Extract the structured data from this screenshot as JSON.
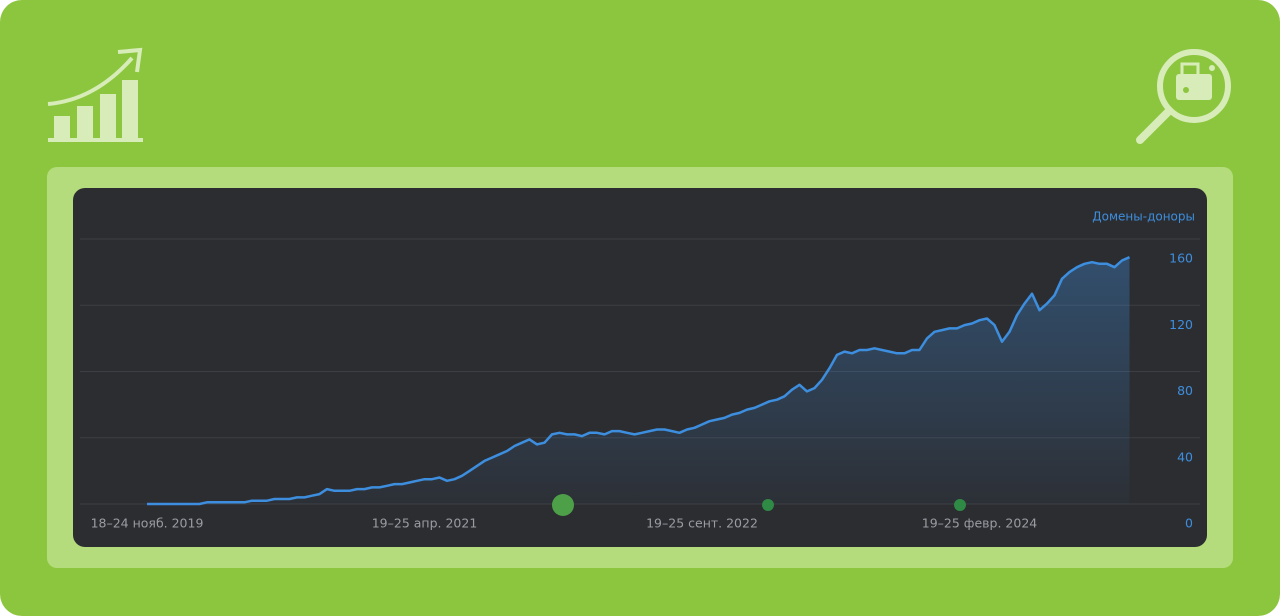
{
  "chart_data": {
    "type": "area",
    "y_axis_label": "Домены-доноры",
    "categories": [
      "18–24 нояб. 2019",
      null,
      null,
      null,
      null,
      null,
      null,
      null,
      null,
      null,
      null,
      null,
      null,
      null,
      null,
      null,
      null,
      null,
      null,
      null,
      null,
      null,
      null,
      null,
      null,
      null,
      null,
      null,
      null,
      null,
      null,
      null,
      null,
      null,
      null,
      null,
      null,
      "19–25 апр. 2021",
      null,
      null,
      null,
      null,
      null,
      null,
      null,
      null,
      null,
      null,
      null,
      null,
      null,
      null,
      null,
      null,
      null,
      null,
      null,
      null,
      null,
      null,
      null,
      null,
      null,
      null,
      null,
      null,
      null,
      null,
      null,
      null,
      null,
      null,
      null,
      null,
      "19–25 сент. 2022",
      null,
      null,
      null,
      null,
      null,
      null,
      null,
      null,
      null,
      null,
      null,
      null,
      null,
      null,
      null,
      null,
      null,
      null,
      null,
      null,
      null,
      null,
      null,
      null,
      null,
      null,
      null,
      null,
      null,
      null,
      null,
      null,
      null,
      null,
      null,
      null,
      "19–25 февр. 2024",
      null,
      null,
      null,
      null,
      null,
      null,
      null,
      null,
      null,
      null,
      null,
      null,
      null,
      null,
      null,
      null,
      null,
      null,
      null,
      null
    ],
    "series": [
      {
        "name": "Домены-доноры",
        "color": "#3d8ede",
        "values": [
          0,
          0,
          0,
          0,
          0,
          0,
          0,
          0,
          1,
          1,
          1,
          1,
          1,
          1,
          2,
          2,
          2,
          3,
          3,
          3,
          4,
          4,
          5,
          6,
          9,
          8,
          8,
          8,
          9,
          9,
          10,
          10,
          11,
          12,
          12,
          13,
          14,
          15,
          15,
          16,
          14,
          15,
          17,
          20,
          23,
          26,
          28,
          30,
          32,
          35,
          37,
          39,
          36,
          37,
          42,
          43,
          42,
          42,
          41,
          43,
          43,
          42,
          44,
          44,
          43,
          42,
          43,
          44,
          45,
          45,
          44,
          43,
          45,
          46,
          48,
          50,
          51,
          52,
          54,
          55,
          57,
          58,
          60,
          62,
          63,
          65,
          69,
          72,
          68,
          70,
          75,
          82,
          90,
          92,
          91,
          93,
          93,
          94,
          93,
          92,
          91,
          91,
          93,
          93,
          100,
          104,
          105,
          106,
          106,
          108,
          109,
          111,
          112,
          108,
          98,
          104,
          114,
          121,
          127,
          117,
          121,
          126,
          136,
          140,
          143,
          145,
          146,
          145,
          145,
          143,
          147,
          149
        ]
      }
    ],
    "ylim": [
      0,
      160
    ],
    "yticks": [
      0,
      40,
      80,
      120,
      160
    ],
    "grid": true,
    "y_axis_side": "right"
  }
}
